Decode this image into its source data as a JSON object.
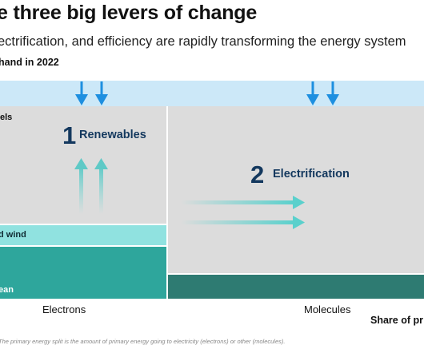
{
  "header": {
    "title": "e three big levers of change",
    "subtitle": "ectrification, and efficiency are rapidly transforming the energy system",
    "demand_label": "hand in 2022"
  },
  "blocks": {
    "fossil_label": "els",
    "wind_label": "d wind",
    "clean_label": "ean"
  },
  "levers": [
    {
      "number": "1",
      "name": "Renewables"
    },
    {
      "number": "2",
      "name": "Electrification"
    }
  ],
  "axis": {
    "electrons": "Electrons",
    "molecules": "Molecules",
    "title": "Share of pr"
  },
  "footnote": "The primary energy split is the amount of primary energy going to electricity (electrons) or other (molecules).",
  "colors": {
    "demand_band": "#cce8f8",
    "fossil": "#dcdcdc",
    "solar_wind": "#90e2e0",
    "clean_electrons": "#2ea69c",
    "clean_molecules": "#2e7b72",
    "arrow_blue": "#1e8fe0",
    "arrow_teal": "#5ad0cc",
    "lever_text": "#13385e"
  }
}
